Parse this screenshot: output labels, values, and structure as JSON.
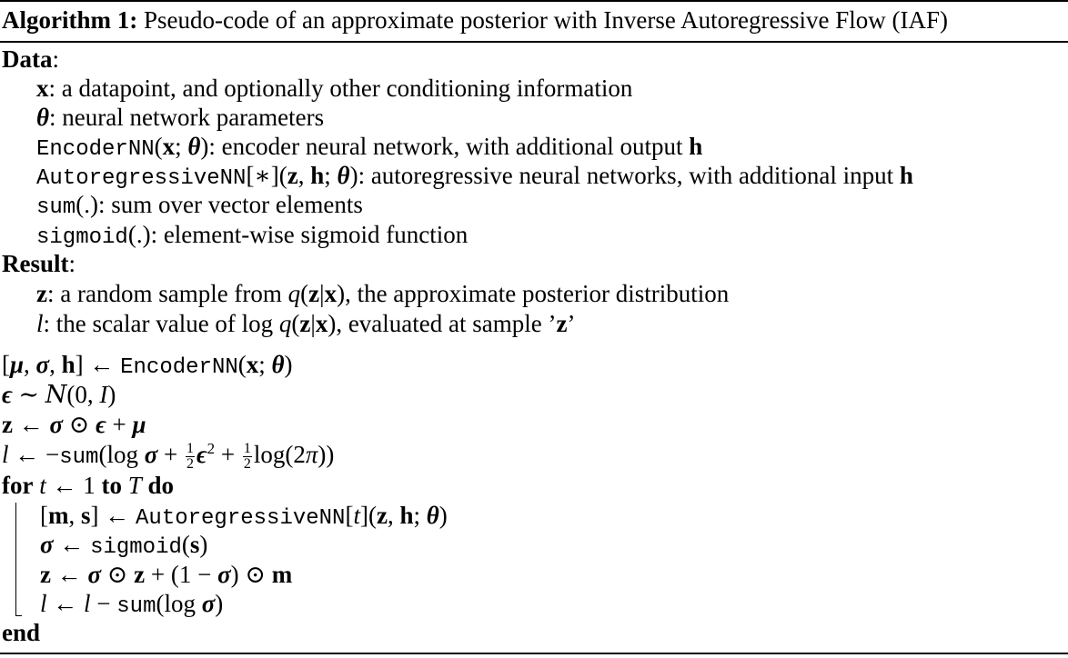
{
  "algorithm": {
    "caption_label": "Algorithm 1:",
    "caption_text": " Pseudo-code of an approximate posterior with Inverse Autoregressive Flow (IAF)"
  },
  "data_section": {
    "heading": "Data",
    "items": {
      "x_sym": "x",
      "x_desc": ": a datapoint, and optionally other conditioning information",
      "theta_sym": "θ",
      "theta_desc": ": neural network parameters",
      "encoder_fn": "EncoderNN",
      "encoder_desc": ": encoder neural network, with additional output ",
      "ar_fn": "AutoregressiveNN",
      "ar_desc": ": autoregressive neural networks, with additional input ",
      "sum_fn": "sum",
      "sum_desc": ": sum over vector elements",
      "sigmoid_fn": "sigmoid",
      "sigmoid_desc": ": element-wise sigmoid function"
    }
  },
  "result_section": {
    "heading": "Result",
    "z_desc_pre": ": a random sample from ",
    "z_desc_post": ", the approximate posterior distribution",
    "l_desc_pre": ": the scalar value of log ",
    "l_desc_post": ", evaluated at sample ’",
    "l_desc_end": "’"
  },
  "keywords": {
    "for": "for",
    "to": "to",
    "do": "do",
    "end": "end"
  }
}
